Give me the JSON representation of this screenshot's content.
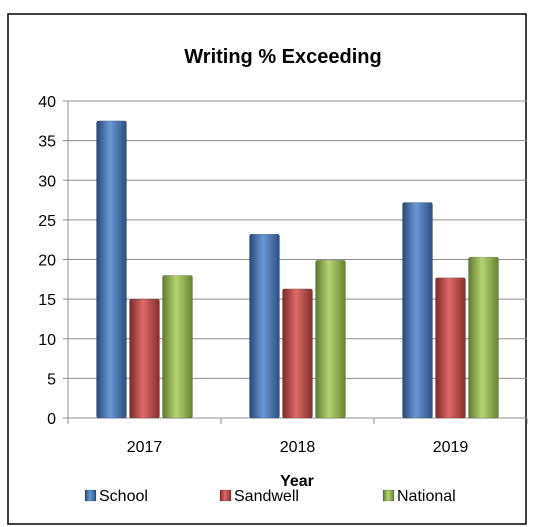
{
  "chart_data": {
    "type": "bar",
    "title": "Writing % Exceeding",
    "xlabel": "Year",
    "ylabel": "",
    "categories": [
      "2017",
      "2018",
      "2019"
    ],
    "series": [
      {
        "name": "School",
        "values": [
          37.5,
          23.2,
          27.2
        ],
        "color": "#4f81bd"
      },
      {
        "name": "Sandwell",
        "values": [
          15.0,
          16.3,
          17.7
        ],
        "color": "#c0504d"
      },
      {
        "name": "National",
        "values": [
          18.0,
          19.9,
          20.3
        ],
        "color": "#9bbb59"
      }
    ],
    "ylim": [
      0,
      40
    ],
    "yticks": [
      "0",
      "5",
      "10",
      "15",
      "20",
      "25",
      "30",
      "35",
      "40"
    ],
    "grid": true,
    "legend": "bottom"
  }
}
